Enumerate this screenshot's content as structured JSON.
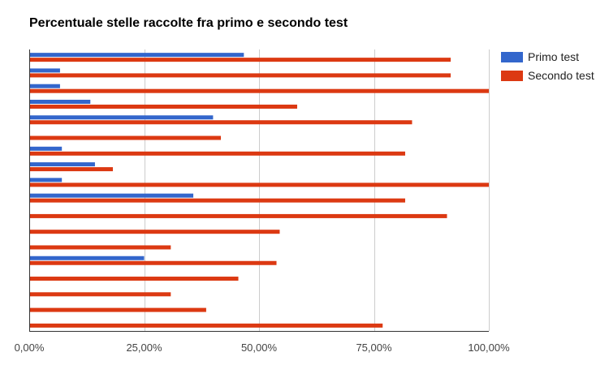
{
  "chart_data": {
    "type": "bar",
    "orientation": "horizontal",
    "title": "Percentuale stelle raccolte fra primo e secondo test",
    "xlabel": "",
    "ylabel": "",
    "xlim": [
      0,
      1
    ],
    "x_ticks": [
      0,
      0.25,
      0.5,
      0.75,
      1.0
    ],
    "x_tick_labels": [
      "0,00%",
      "25,00%",
      "50,00%",
      "75,00%",
      "100,00%"
    ],
    "grid": true,
    "legend_position": "right",
    "series": [
      {
        "name": "Primo test",
        "color": "#3366cc",
        "values": [
          0.467,
          0.067,
          0.067,
          0.133,
          0.4,
          0,
          0.071,
          0.143,
          0.071,
          0.357,
          0,
          0,
          0,
          0.25,
          0,
          0,
          0,
          0
        ]
      },
      {
        "name": "Secondo test",
        "color": "#dc3912",
        "values": [
          0.917,
          0.917,
          1.0,
          0.583,
          0.833,
          0.417,
          0.818,
          0.182,
          1.0,
          0.818,
          0.909,
          0.545,
          0.308,
          0.538,
          0.455,
          0.308,
          0.385,
          0.769
        ]
      }
    ]
  }
}
